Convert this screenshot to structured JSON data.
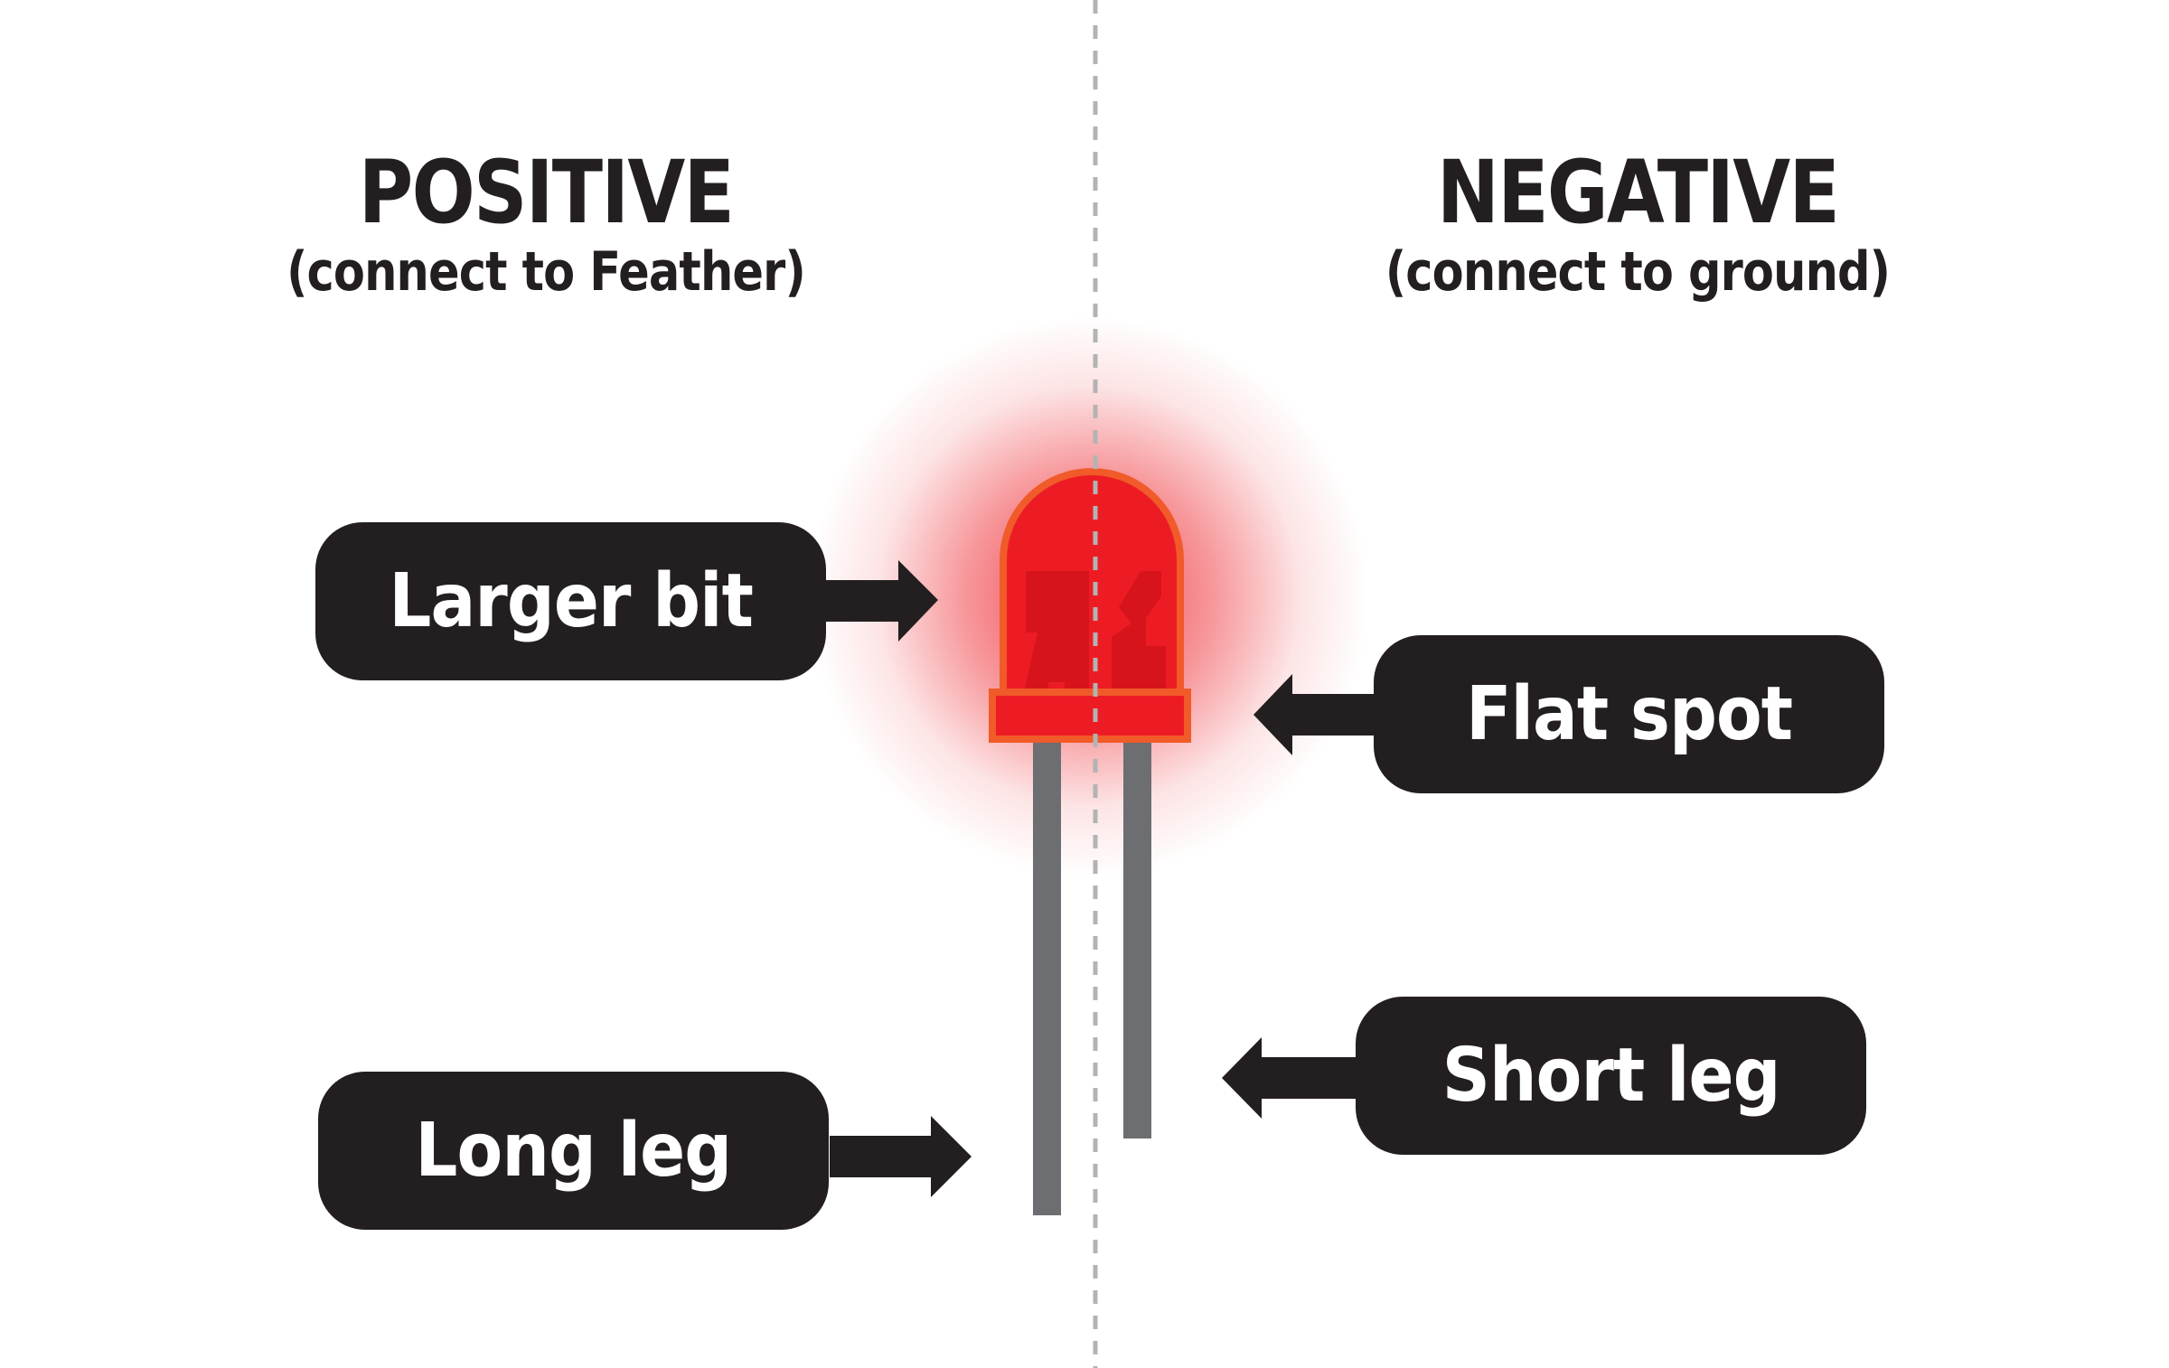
{
  "positive": {
    "title": "POSITIVE",
    "subtitle": "(connect to Feather)"
  },
  "negative": {
    "title": "NEGATIVE",
    "subtitle": "(connect to ground)"
  },
  "labels": {
    "larger_bit": "Larger bit",
    "long_leg": "Long leg",
    "flat_spot": "Flat spot",
    "short_leg": "Short leg"
  },
  "colors": {
    "text": "#231f20",
    "label_background": "#231f20",
    "label_text": "#ffffff",
    "led_body": "#ed1c24",
    "led_outline": "#f15a29",
    "led_inner": "#d7141b",
    "led_glow": "#ed1c24",
    "leg": "#6d6e71",
    "divider": "#b3b3b3"
  }
}
